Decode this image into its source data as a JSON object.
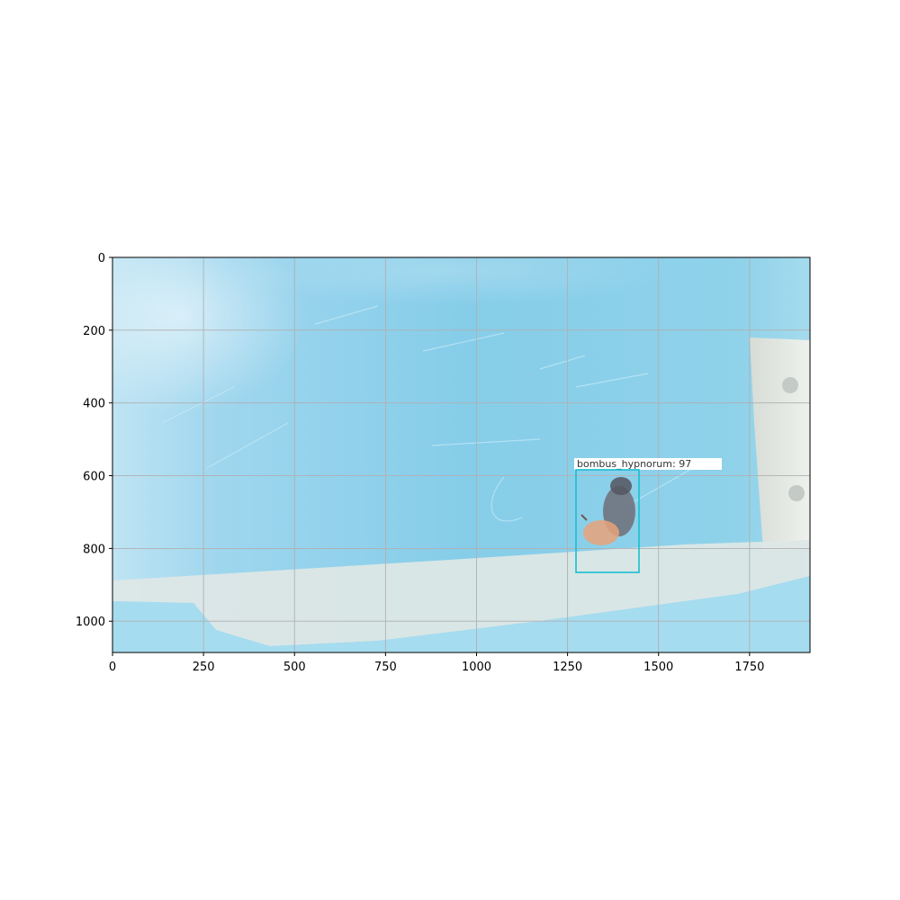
{
  "figure": {
    "x_ticks": [
      "0",
      "250",
      "500",
      "750",
      "1000",
      "1250",
      "1500",
      "1750"
    ],
    "y_ticks": [
      "0",
      "200",
      "400",
      "600",
      "800",
      "1000"
    ],
    "grid": true,
    "grid_color": "#b0b0b0"
  },
  "photo": {
    "subject": "bumblebee on translucent blue plastic surface",
    "background_color": "#8fd0e8",
    "ledge_color": "#dfe9e8"
  },
  "detection": {
    "label": "bombus_hypnorum: 97",
    "box_color": "#17becf"
  }
}
